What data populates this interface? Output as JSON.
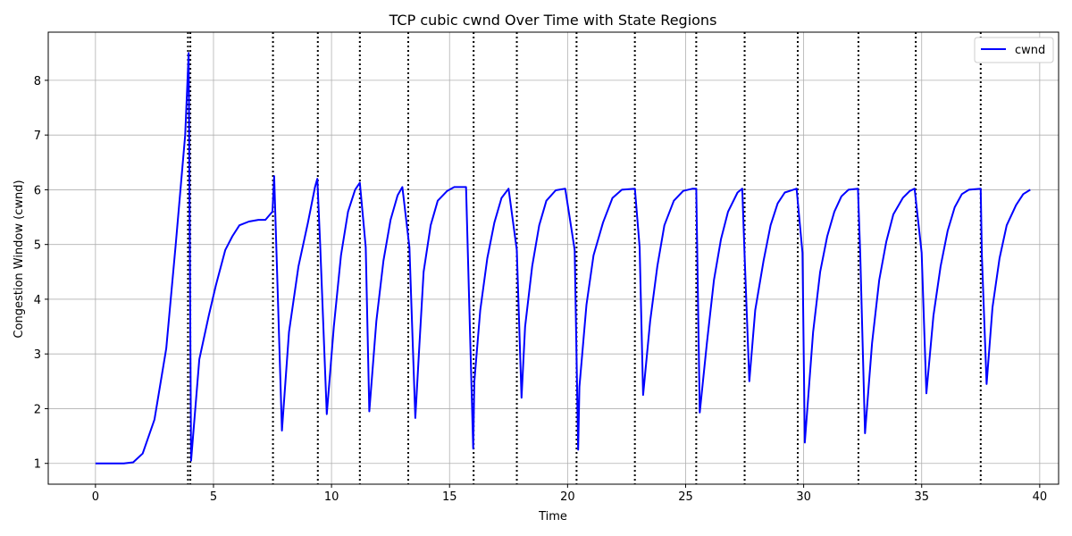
{
  "chart_data": {
    "type": "line",
    "title": "TCP cubic cwnd Over Time with State Regions",
    "xlabel": "Time",
    "ylabel": "Congestion Window (cwnd)",
    "xlim": [
      -2,
      40.8
    ],
    "ylim": [
      0.62,
      8.88
    ],
    "xticks": [
      0,
      5,
      10,
      15,
      20,
      25,
      30,
      35,
      40
    ],
    "yticks": [
      1,
      2,
      3,
      4,
      5,
      6,
      7,
      8
    ],
    "grid": true,
    "legend": {
      "position": "top-right",
      "entries": [
        "cwnd"
      ]
    },
    "series": [
      {
        "name": "cwnd",
        "color": "#0000ff",
        "x": [
          0,
          0.5,
          1.0,
          1.2,
          1.6,
          2.0,
          2.5,
          3.0,
          3.4,
          3.8,
          3.95,
          4.05,
          4.4,
          4.8,
          5.1,
          5.5,
          5.8,
          6.1,
          6.5,
          6.9,
          7.2,
          7.5,
          7.57,
          7.9,
          8.2,
          8.6,
          9.0,
          9.3,
          9.4,
          9.52,
          9.8,
          10.1,
          10.4,
          10.7,
          11.0,
          11.2,
          11.45,
          11.6,
          11.9,
          12.2,
          12.5,
          12.8,
          13.0,
          13.3,
          13.55,
          13.7,
          13.9,
          14.2,
          14.5,
          14.9,
          15.2,
          15.7,
          16.0,
          16.05,
          16.3,
          16.6,
          16.9,
          17.2,
          17.5,
          17.85,
          18.05,
          18.2,
          18.5,
          18.8,
          19.1,
          19.5,
          19.9,
          20.3,
          20.45,
          20.5,
          20.8,
          21.1,
          21.5,
          21.9,
          22.3,
          22.85,
          23.05,
          23.2,
          23.5,
          23.8,
          24.1,
          24.5,
          24.9,
          25.3,
          25.45,
          25.6,
          25.9,
          26.2,
          26.5,
          26.8,
          27.2,
          27.4,
          27.5,
          27.7,
          27.95,
          28.3,
          28.6,
          28.9,
          29.2,
          29.7,
          29.95,
          30.05,
          30.4,
          30.7,
          31.0,
          31.3,
          31.6,
          31.9,
          32.3,
          32.4,
          32.6,
          32.9,
          33.2,
          33.5,
          33.8,
          34.2,
          34.5,
          34.7,
          35.0,
          35.2,
          35.5,
          35.8,
          36.1,
          36.4,
          36.7,
          37.0,
          37.5,
          37.55,
          37.75,
          38.0,
          38.3,
          38.6,
          39.0,
          39.3,
          39.6
        ],
        "y": [
          1.0,
          1.0,
          1.0,
          1.0,
          1.02,
          1.18,
          1.8,
          3.1,
          5.0,
          7.0,
          8.5,
          1.05,
          2.9,
          3.7,
          4.25,
          4.9,
          5.15,
          5.35,
          5.42,
          5.45,
          5.45,
          5.6,
          6.25,
          1.6,
          3.4,
          4.6,
          5.4,
          6.05,
          6.2,
          5.0,
          1.9,
          3.5,
          4.8,
          5.6,
          6.0,
          6.13,
          4.95,
          1.95,
          3.6,
          4.7,
          5.45,
          5.9,
          6.05,
          4.95,
          1.83,
          3.0,
          4.5,
          5.35,
          5.8,
          5.98,
          6.05,
          6.05,
          1.27,
          2.5,
          3.8,
          4.75,
          5.4,
          5.85,
          6.02,
          4.9,
          2.2,
          3.5,
          4.6,
          5.35,
          5.8,
          5.99,
          6.02,
          4.9,
          1.25,
          2.4,
          3.9,
          4.8,
          5.4,
          5.85,
          6.0,
          6.02,
          4.95,
          2.25,
          3.6,
          4.6,
          5.35,
          5.8,
          5.98,
          6.02,
          6.02,
          1.93,
          3.2,
          4.35,
          5.1,
          5.6,
          5.95,
          6.02,
          4.8,
          2.5,
          3.8,
          4.7,
          5.35,
          5.75,
          5.95,
          6.02,
          4.85,
          1.38,
          3.4,
          4.5,
          5.15,
          5.6,
          5.88,
          6.0,
          6.02,
          4.8,
          1.55,
          3.2,
          4.35,
          5.05,
          5.55,
          5.85,
          5.98,
          6.02,
          4.85,
          2.28,
          3.7,
          4.6,
          5.25,
          5.68,
          5.92,
          6.0,
          6.02,
          4.8,
          2.45,
          3.85,
          4.75,
          5.35,
          5.72,
          5.92,
          6.0
        ]
      }
    ],
    "state_markers": {
      "style": "dotted",
      "color": "#000000",
      "x": [
        3.92,
        4.02,
        7.52,
        9.42,
        11.2,
        13.25,
        16.02,
        17.85,
        20.38,
        22.85,
        25.45,
        27.5,
        29.75,
        32.32,
        34.75,
        37.5
      ]
    }
  }
}
